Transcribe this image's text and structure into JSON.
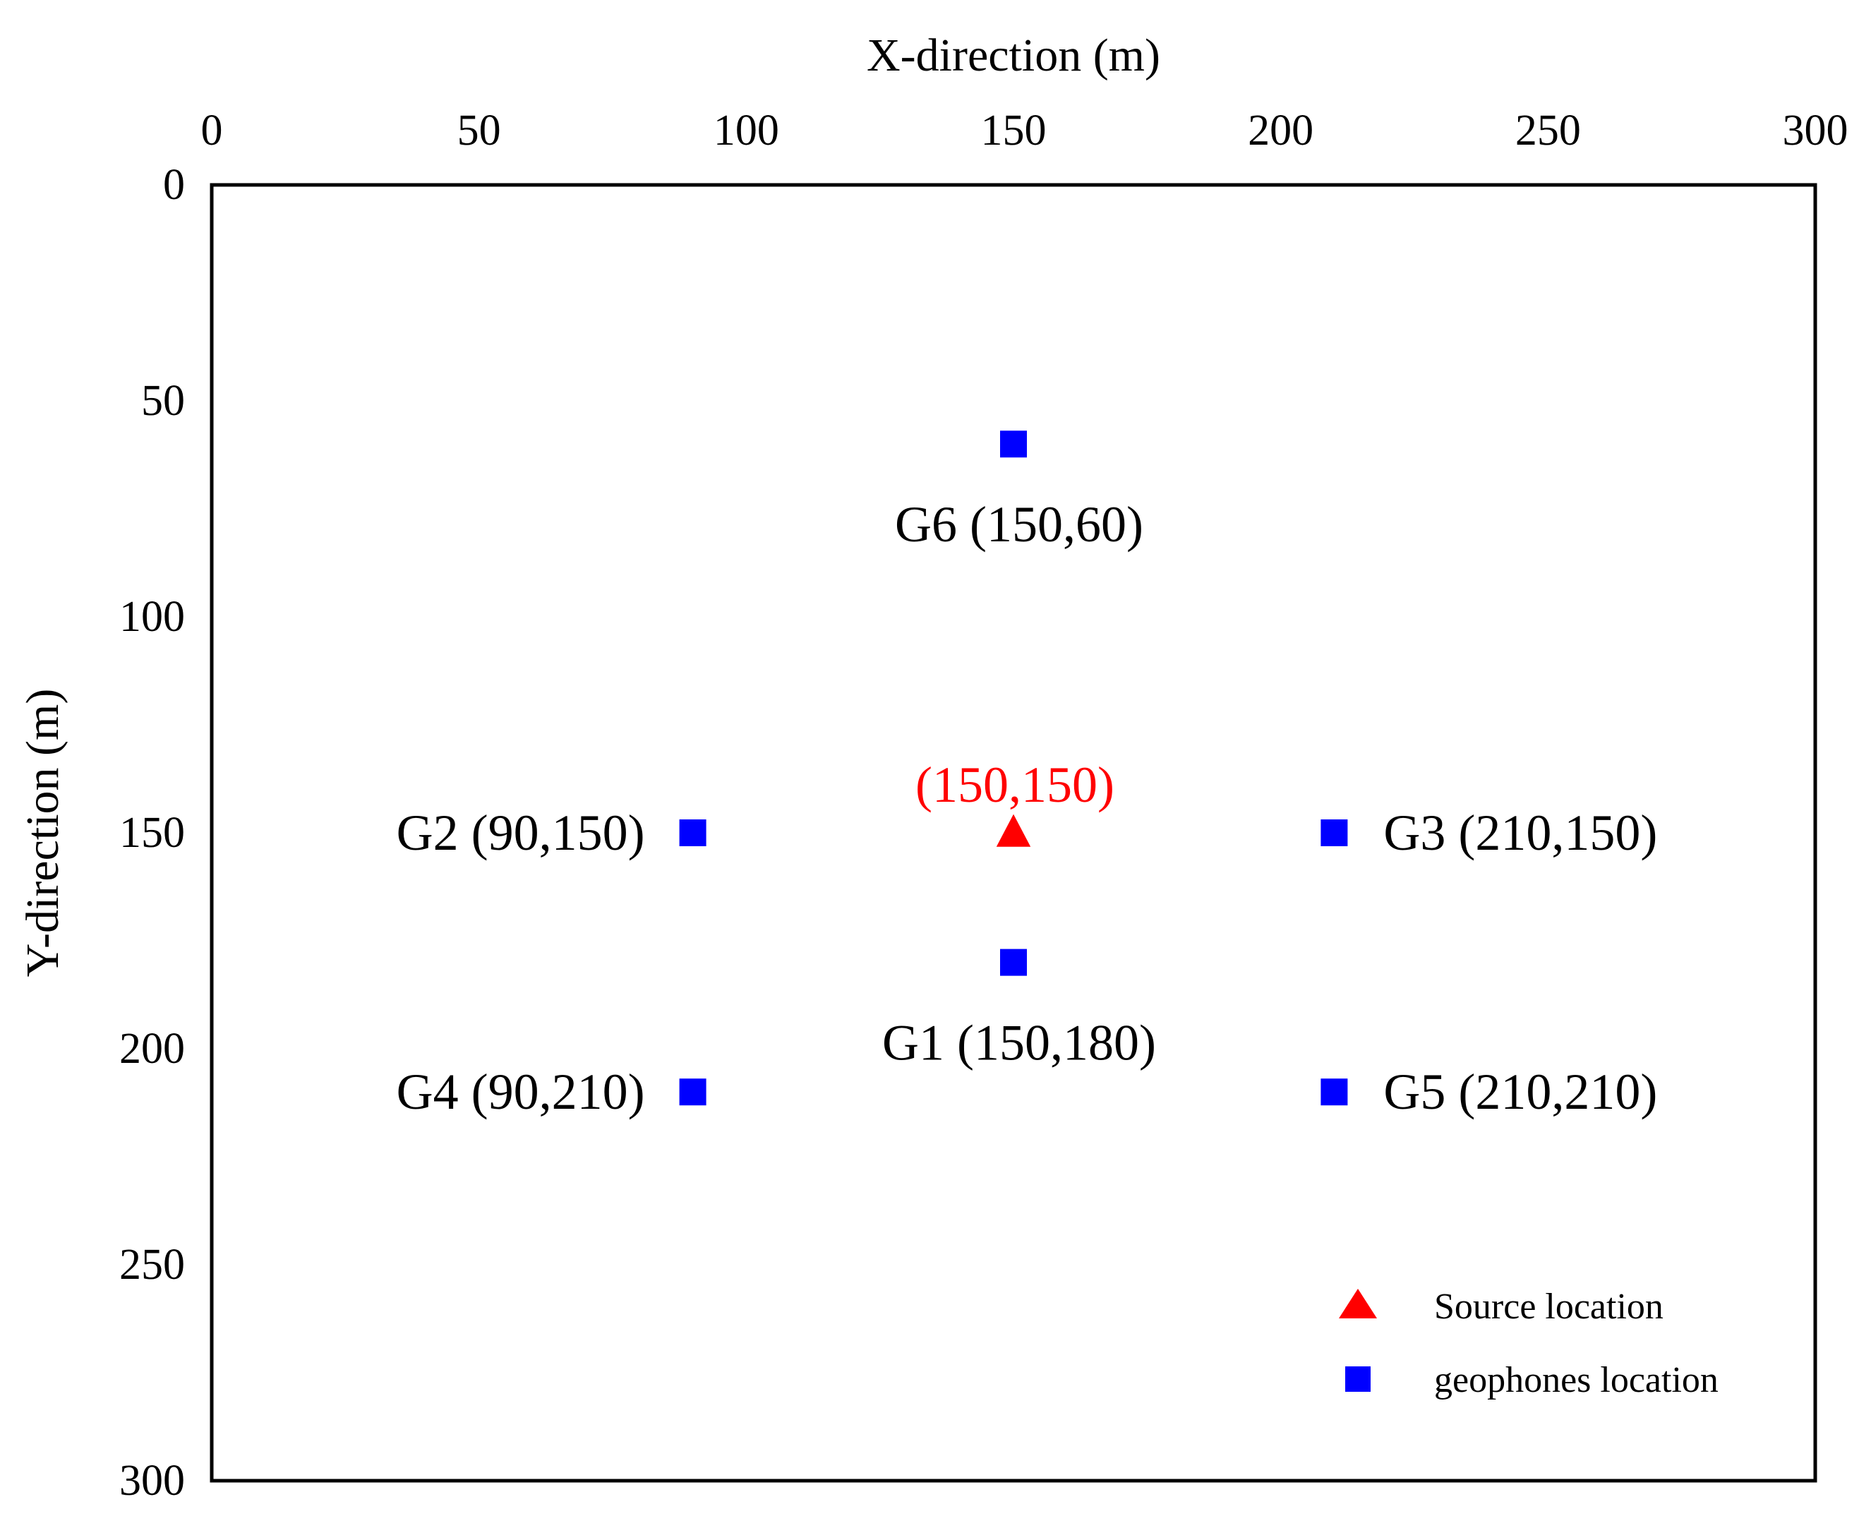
{
  "chart_data": {
    "type": "scatter",
    "title": "",
    "xlabel": "X-direction (m)",
    "ylabel": "Y-direction (m)",
    "xlim": [
      0,
      300
    ],
    "ylim": [
      0,
      300
    ],
    "x_ticks": [
      0,
      50,
      100,
      150,
      200,
      250,
      300
    ],
    "y_ticks": [
      0,
      50,
      100,
      150,
      200,
      250,
      300
    ],
    "x_axis_position": "top",
    "y_axis_inverted": true,
    "grid": false,
    "legend_position": "bottom-right",
    "series": [
      {
        "name": "Source location",
        "marker": "triangle",
        "color": "#ff0000",
        "points": [
          {
            "x": 150,
            "y": 150,
            "label": "(150,150)",
            "label_position": "above"
          }
        ]
      },
      {
        "name": "geophones location",
        "marker": "square",
        "color": "#0000ff",
        "points": [
          {
            "x": 150,
            "y": 180,
            "label": "G1 (150,180)",
            "label_position": "below"
          },
          {
            "x": 90,
            "y": 150,
            "label": "G2 (90,150)",
            "label_position": "left"
          },
          {
            "x": 210,
            "y": 150,
            "label": "G3 (210,150)",
            "label_position": "right"
          },
          {
            "x": 90,
            "y": 210,
            "label": "G4 (90,210)",
            "label_position": "left"
          },
          {
            "x": 210,
            "y": 210,
            "label": "G5 (210,210)",
            "label_position": "right"
          },
          {
            "x": 150,
            "y": 60,
            "label": "G6 (150,60)",
            "label_position": "below"
          }
        ]
      }
    ]
  }
}
